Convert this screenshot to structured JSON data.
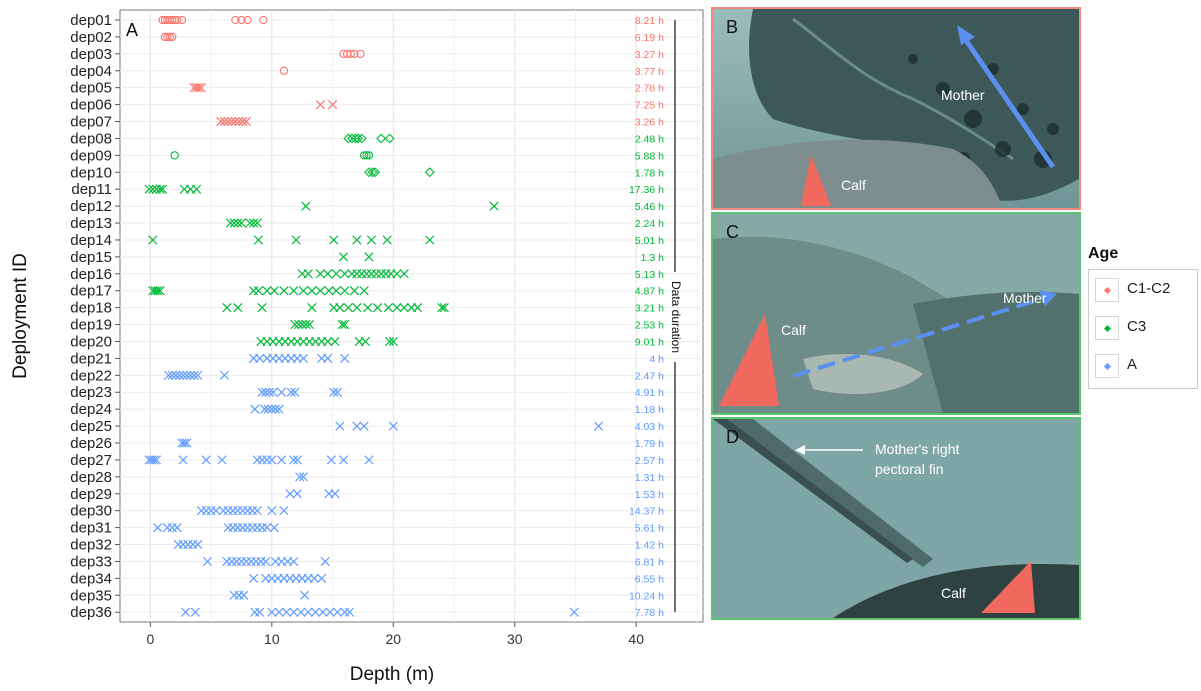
{
  "chart_data": {
    "type": "scatter",
    "panel_label": "A",
    "xlabel": "Depth (m)",
    "ylabel": "Deployment ID",
    "xlim": [
      -2.5,
      45.5
    ],
    "xticks": [
      0,
      10,
      20,
      30,
      40
    ],
    "grid": true,
    "duration_label": "Data duration",
    "legend_title": "Age",
    "legend_position": "right",
    "groups": [
      {
        "name": "C1-C2",
        "color": "#f8766d"
      },
      {
        "name": "C3",
        "color": "#00ba38"
      },
      {
        "name": "A",
        "color": "#619cff"
      }
    ],
    "deployments": [
      {
        "id": "dep01",
        "group": "C1-C2",
        "marker": "o",
        "duration": "8.21 h",
        "depths": [
          1.0,
          1.2,
          1.4,
          1.6,
          1.8,
          2.0,
          2.2,
          2.6,
          7.0,
          7.5,
          8.0,
          9.3
        ]
      },
      {
        "id": "dep02",
        "group": "C1-C2",
        "marker": "o",
        "duration": "6.19 h",
        "depths": [
          1.2,
          1.4,
          1.6,
          1.8
        ]
      },
      {
        "id": "dep03",
        "group": "C1-C2",
        "marker": "o",
        "duration": "3.27 h",
        "depths": [
          15.9,
          16.2,
          16.5,
          16.8,
          17.3
        ]
      },
      {
        "id": "dep04",
        "group": "C1-C2",
        "marker": "o",
        "duration": "3.77 h",
        "depths": [
          11.0
        ]
      },
      {
        "id": "dep05",
        "group": "C1-C2",
        "marker": "x",
        "duration": "2.78 h",
        "depths": [
          3.6,
          3.8,
          4.0,
          4.2
        ]
      },
      {
        "id": "dep06",
        "group": "C1-C2",
        "marker": "x",
        "duration": "7.25 h",
        "depths": [
          14.0,
          15.0
        ]
      },
      {
        "id": "dep07",
        "group": "C1-C2",
        "marker": "x",
        "duration": "3.26 h",
        "depths": [
          5.8,
          6.1,
          6.4,
          6.7,
          7.0,
          7.3,
          7.6,
          7.9
        ]
      },
      {
        "id": "dep08",
        "group": "C3",
        "marker": "d",
        "duration": "2.48 h",
        "depths": [
          16.3,
          16.6,
          16.9,
          17.1,
          17.4,
          19.0,
          19.7
        ]
      },
      {
        "id": "dep09",
        "group": "C3",
        "marker": "o",
        "duration": "5.88 h",
        "depths": [
          2.0,
          17.6,
          17.8,
          18.0
        ]
      },
      {
        "id": "dep10",
        "group": "C3",
        "marker": "d",
        "duration": "1.78 h",
        "depths": [
          18.0,
          18.3,
          18.5,
          23.0
        ]
      },
      {
        "id": "dep11",
        "group": "C3",
        "marker": "x",
        "duration": "17.36 h",
        "depths": [
          -0.1,
          0.2,
          0.5,
          0.8,
          1.0,
          2.8,
          3.3,
          3.8
        ]
      },
      {
        "id": "dep12",
        "group": "C3",
        "marker": "x",
        "duration": "5.46 h",
        "depths": [
          12.8,
          28.3
        ]
      },
      {
        "id": "dep13",
        "group": "C3",
        "marker": "x",
        "duration": "2.24 h",
        "depths": [
          6.6,
          6.9,
          7.2,
          7.5,
          8.2,
          8.5,
          8.8
        ]
      },
      {
        "id": "dep14",
        "group": "C3",
        "marker": "x",
        "duration": "5.01 h",
        "depths": [
          0.2,
          8.9,
          12.0,
          15.1,
          17.0,
          18.2,
          19.5,
          23.0
        ]
      },
      {
        "id": "dep15",
        "group": "C3",
        "marker": "x",
        "duration": "1.3 h",
        "depths": [
          15.9,
          18.0
        ]
      },
      {
        "id": "dep16",
        "group": "C3",
        "marker": "x",
        "duration": "5.13 h",
        "depths": [
          12.5,
          13.0,
          14.0,
          14.6,
          15.3,
          16.0,
          16.6,
          17.0,
          17.4,
          17.8,
          18.2,
          18.6,
          19.0,
          19.4,
          19.8,
          20.3,
          20.9
        ]
      },
      {
        "id": "dep17",
        "group": "C3",
        "marker": "x",
        "duration": "4.87 h",
        "depths": [
          0.2,
          0.4,
          0.6,
          0.8,
          8.5,
          8.9,
          9.6,
          10.2,
          11.0,
          11.8,
          12.6,
          13.3,
          14.0,
          14.7,
          15.3,
          16.0,
          16.8,
          17.6
        ]
      },
      {
        "id": "dep18",
        "group": "C3",
        "marker": "x",
        "duration": "3.21 h",
        "depths": [
          6.3,
          7.2,
          9.2,
          13.3,
          15.1,
          15.6,
          16.3,
          17.0,
          17.9,
          18.7,
          19.6,
          20.3,
          20.9,
          21.5,
          22.0,
          24.0,
          24.2
        ]
      },
      {
        "id": "dep19",
        "group": "C3",
        "marker": "x",
        "duration": "2.53 h",
        "depths": [
          11.9,
          12.2,
          12.5,
          12.8,
          13.1,
          15.8,
          16.0
        ]
      },
      {
        "id": "dep20",
        "group": "C3",
        "marker": "x",
        "duration": "9.01 h",
        "depths": [
          9.1,
          9.6,
          10.1,
          10.6,
          11.1,
          11.6,
          12.1,
          12.6,
          13.1,
          13.6,
          14.1,
          14.6,
          15.2,
          17.2,
          17.7,
          19.7,
          20.0
        ]
      },
      {
        "id": "dep21",
        "group": "A",
        "marker": "x",
        "duration": "4 h",
        "depths": [
          8.5,
          9.0,
          9.6,
          10.1,
          10.6,
          11.1,
          11.6,
          12.1,
          12.6,
          14.1,
          14.6,
          16.0
        ]
      },
      {
        "id": "dep22",
        "group": "A",
        "marker": "x",
        "duration": "2.47 h",
        "depths": [
          1.5,
          1.8,
          2.1,
          2.4,
          2.7,
          3.0,
          3.3,
          3.6,
          3.9,
          6.1
        ]
      },
      {
        "id": "dep23",
        "group": "A",
        "marker": "x",
        "duration": "4.91 h",
        "depths": [
          9.2,
          9.5,
          9.8,
          10.1,
          10.8,
          11.6,
          11.9,
          15.1,
          15.4
        ]
      },
      {
        "id": "dep24",
        "group": "A",
        "marker": "x",
        "duration": "1.18 h",
        "depths": [
          8.6,
          9.4,
          9.7,
          10.0,
          10.3,
          10.6
        ]
      },
      {
        "id": "dep25",
        "group": "A",
        "marker": "x",
        "duration": "4.03 h",
        "depths": [
          15.6,
          17.0,
          17.6,
          20.0,
          36.9
        ]
      },
      {
        "id": "dep26",
        "group": "A",
        "marker": "x",
        "duration": "1.79 h",
        "depths": [
          2.6,
          2.8,
          3.0
        ]
      },
      {
        "id": "dep27",
        "group": "A",
        "marker": "x",
        "duration": "2.57 h",
        "depths": [
          -0.1,
          0.1,
          0.3,
          0.5,
          2.7,
          4.6,
          5.9,
          8.8,
          9.2,
          9.6,
          10.0,
          10.8,
          11.8,
          12.1,
          14.9,
          15.9,
          18.0
        ]
      },
      {
        "id": "dep28",
        "group": "A",
        "marker": "x",
        "duration": "1.31 h",
        "depths": [
          12.3,
          12.6
        ]
      },
      {
        "id": "dep29",
        "group": "A",
        "marker": "x",
        "duration": "1.53 h",
        "depths": [
          11.5,
          12.1,
          14.7,
          15.2
        ]
      },
      {
        "id": "dep30",
        "group": "A",
        "marker": "x",
        "duration": "14.37 h",
        "depths": [
          4.2,
          4.6,
          5.0,
          5.4,
          6.0,
          6.4,
          6.8,
          7.2,
          7.6,
          8.0,
          8.4,
          8.8,
          10.0,
          11.0
        ]
      },
      {
        "id": "dep31",
        "group": "A",
        "marker": "x",
        "duration": "5.61 h",
        "depths": [
          0.6,
          1.4,
          1.8,
          2.2,
          6.4,
          6.8,
          7.2,
          7.6,
          8.0,
          8.4,
          8.8,
          9.2,
          9.6,
          10.2
        ]
      },
      {
        "id": "dep32",
        "group": "A",
        "marker": "x",
        "duration": "1.42 h",
        "depths": [
          2.3,
          2.7,
          3.1,
          3.5,
          3.9
        ]
      },
      {
        "id": "dep33",
        "group": "A",
        "marker": "x",
        "duration": "6.81 h",
        "depths": [
          4.7,
          6.3,
          6.7,
          7.1,
          7.5,
          7.9,
          8.3,
          8.7,
          9.1,
          9.5,
          10.3,
          10.8,
          11.3,
          11.8,
          14.4
        ]
      },
      {
        "id": "dep34",
        "group": "A",
        "marker": "x",
        "duration": "6.55 h",
        "depths": [
          8.5,
          9.5,
          10.0,
          10.5,
          11.0,
          11.5,
          12.0,
          12.5,
          13.0,
          13.5,
          14.1
        ]
      },
      {
        "id": "dep35",
        "group": "A",
        "marker": "x",
        "duration": "10.24 h",
        "depths": [
          6.9,
          7.3,
          7.7,
          12.7
        ]
      },
      {
        "id": "dep36",
        "group": "A",
        "marker": "x",
        "duration": "7.78 h",
        "depths": [
          2.9,
          3.7,
          8.6,
          9.0,
          10.0,
          10.6,
          11.2,
          11.8,
          12.4,
          13.0,
          13.6,
          14.2,
          14.8,
          15.4,
          16.0,
          16.4,
          34.9
        ]
      }
    ]
  },
  "photos": {
    "b": {
      "label": "B",
      "border": "#f08b7e",
      "mother": "Mother",
      "calf": "Calf"
    },
    "c": {
      "label": "C",
      "border": "#5cc46e",
      "mother": "Mother",
      "calf": "Calf"
    },
    "d": {
      "label": "D",
      "border": "#5cc46e",
      "fin_line1": "Mother's right",
      "fin_line2": "pectoral fin",
      "calf": "Calf"
    }
  },
  "colors": {
    "arrow_blue": "#5b8ff0",
    "triangle_red": "#f0685e",
    "water": "#7fa6a6"
  }
}
